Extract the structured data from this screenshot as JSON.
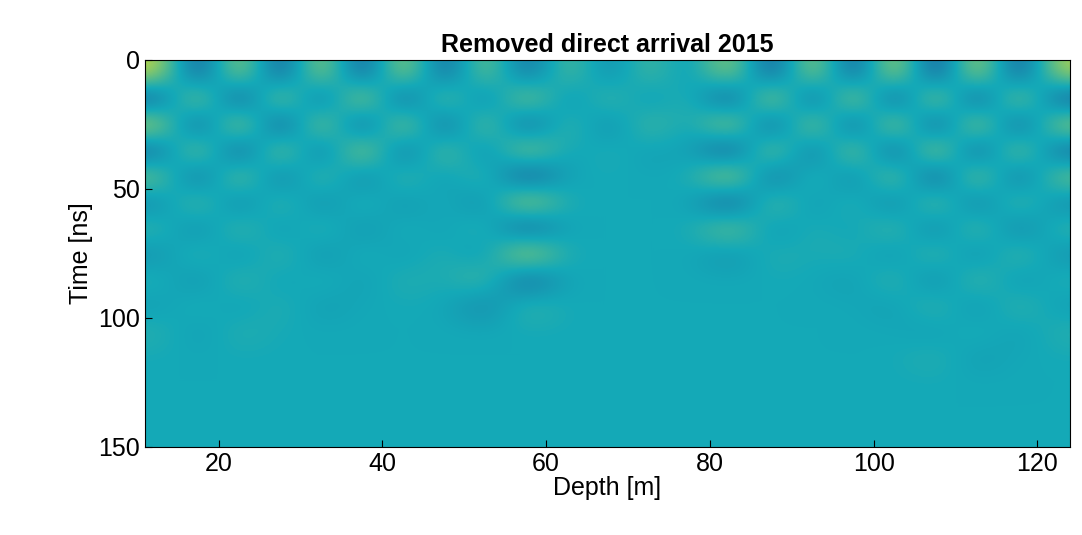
{
  "chart_data": {
    "type": "heatmap",
    "title": "Removed direct arrival 2015",
    "x_label": "Depth [m]",
    "y_label": "Time [ns]",
    "x": [
      12.5,
      17.5,
      22.5,
      27.5,
      32.5,
      37.5,
      42.5,
      47.5,
      52.5,
      57.5,
      62.5,
      67.5,
      72.5,
      77.5,
      82.5,
      87.5,
      92.5,
      97.5,
      102.5,
      107.5,
      112.5,
      117.5,
      122.5
    ],
    "y": [
      5,
      15,
      25,
      35,
      45,
      55,
      65,
      75,
      85,
      95,
      105,
      115,
      125,
      135,
      145
    ],
    "values": [
      [
        0.8,
        -0.8,
        0.8,
        -0.8,
        0.8,
        -0.8,
        0.8,
        -0.7,
        0.6,
        -0.6,
        0.4,
        -0.3,
        0.3,
        -0.2,
        0.7,
        -0.8,
        0.8,
        -0.8,
        0.9,
        -0.9,
        0.9,
        -0.8,
        0.7
      ],
      [
        -0.7,
        0.8,
        -0.9,
        0.8,
        -0.7,
        0.9,
        -0.8,
        0.6,
        -0.5,
        0.7,
        -0.3,
        0.3,
        -0.2,
        0.2,
        -0.8,
        0.9,
        -0.8,
        0.9,
        -0.9,
        0.9,
        -0.9,
        0.8,
        -0.7
      ],
      [
        0.8,
        -0.8,
        0.9,
        -0.9,
        0.8,
        -0.8,
        0.8,
        -0.7,
        0.6,
        -0.7,
        0.3,
        -0.3,
        0.3,
        -0.1,
        0.8,
        -0.8,
        0.8,
        -0.8,
        0.9,
        -0.9,
        0.9,
        -0.8,
        0.7
      ],
      [
        -0.6,
        0.7,
        -0.8,
        0.7,
        -0.6,
        0.8,
        -0.6,
        0.5,
        -0.4,
        0.7,
        -0.1,
        0.1,
        -0.1,
        0.0,
        -0.8,
        0.7,
        -0.6,
        0.7,
        -0.8,
        0.9,
        -0.8,
        0.7,
        -0.6
      ],
      [
        0.5,
        -0.6,
        0.6,
        -0.5,
        0.4,
        -0.4,
        0.3,
        -0.2,
        0.3,
        -0.8,
        0.0,
        0.0,
        0.0,
        0.0,
        0.8,
        -0.6,
        0.3,
        -0.4,
        0.6,
        -0.8,
        0.7,
        -0.6,
        0.5
      ],
      [
        -0.3,
        0.4,
        -0.4,
        0.3,
        -0.3,
        0.2,
        -0.2,
        0.1,
        -0.3,
        0.8,
        0.0,
        0.0,
        0.0,
        0.0,
        -0.7,
        0.4,
        -0.2,
        0.2,
        -0.4,
        0.5,
        -0.5,
        0.4,
        -0.3
      ],
      [
        0.2,
        -0.3,
        0.3,
        -0.2,
        0.2,
        -0.2,
        0.1,
        -0.1,
        0.2,
        -0.7,
        0.0,
        0.0,
        0.0,
        0.0,
        0.5,
        -0.2,
        0.1,
        -0.1,
        0.3,
        -0.4,
        0.4,
        -0.4,
        0.2
      ],
      [
        -0.2,
        0.2,
        -0.2,
        0.2,
        -0.2,
        0.1,
        -0.1,
        0.1,
        -0.2,
        0.8,
        0.0,
        0.0,
        0.0,
        0.0,
        -0.2,
        0.1,
        0.0,
        0.1,
        -0.2,
        0.3,
        -0.3,
        0.3,
        -0.2
      ],
      [
        0.1,
        -0.2,
        0.2,
        -0.1,
        0.1,
        -0.1,
        0.1,
        0.0,
        0.3,
        -0.6,
        0.0,
        0.0,
        0.0,
        0.0,
        0.0,
        0.0,
        0.0,
        -0.1,
        0.2,
        -0.3,
        0.3,
        -0.2,
        0.1
      ],
      [
        -0.1,
        0.1,
        -0.1,
        0.1,
        -0.1,
        0.0,
        0.0,
        0.0,
        -0.3,
        0.2,
        0.0,
        0.0,
        0.0,
        0.0,
        0.0,
        0.0,
        0.0,
        0.0,
        -0.1,
        0.2,
        -0.2,
        0.2,
        -0.1
      ],
      [
        0.1,
        -0.1,
        0.1,
        0.0,
        0.0,
        0.0,
        0.0,
        0.0,
        0.0,
        0.0,
        0.0,
        0.0,
        0.0,
        0.0,
        0.0,
        0.0,
        0.0,
        0.0,
        0.0,
        -0.1,
        0.1,
        -0.1,
        0.1
      ],
      [
        0.0,
        0.0,
        0.0,
        0.0,
        0.0,
        0.0,
        0.0,
        0.0,
        0.0,
        0.0,
        0.0,
        0.0,
        0.0,
        0.0,
        0.0,
        0.0,
        0.0,
        0.0,
        0.0,
        0.1,
        -0.1,
        0.0,
        0.0
      ],
      [
        0.0,
        0.0,
        0.0,
        0.0,
        0.0,
        0.0,
        0.0,
        0.0,
        0.0,
        0.0,
        0.0,
        0.0,
        0.0,
        0.0,
        0.0,
        0.0,
        0.0,
        0.0,
        0.0,
        0.0,
        0.0,
        0.0,
        0.0
      ],
      [
        0.0,
        0.0,
        0.0,
        0.0,
        0.0,
        0.0,
        0.0,
        0.0,
        0.0,
        0.0,
        0.0,
        0.0,
        0.0,
        0.0,
        0.0,
        0.0,
        0.0,
        0.0,
        0.0,
        0.0,
        0.0,
        0.0,
        0.0
      ],
      [
        0.0,
        0.0,
        0.0,
        0.0,
        0.0,
        0.0,
        0.0,
        0.0,
        0.0,
        0.0,
        0.0,
        0.0,
        0.0,
        0.0,
        0.0,
        0.0,
        0.0,
        0.0,
        0.0,
        0.0,
        0.0,
        0.0,
        0.0
      ]
    ],
    "value_range": [
      -1,
      1
    ],
    "colors": [
      "#2b2a8c",
      "#14a9b8",
      "#f5e51c"
    ],
    "xlim": [
      11,
      124
    ],
    "xticks": [
      20,
      40,
      60,
      80,
      100,
      120
    ],
    "ylim": [
      150,
      0
    ],
    "yticks": [
      0,
      50,
      100,
      150
    ],
    "grid": false
  }
}
